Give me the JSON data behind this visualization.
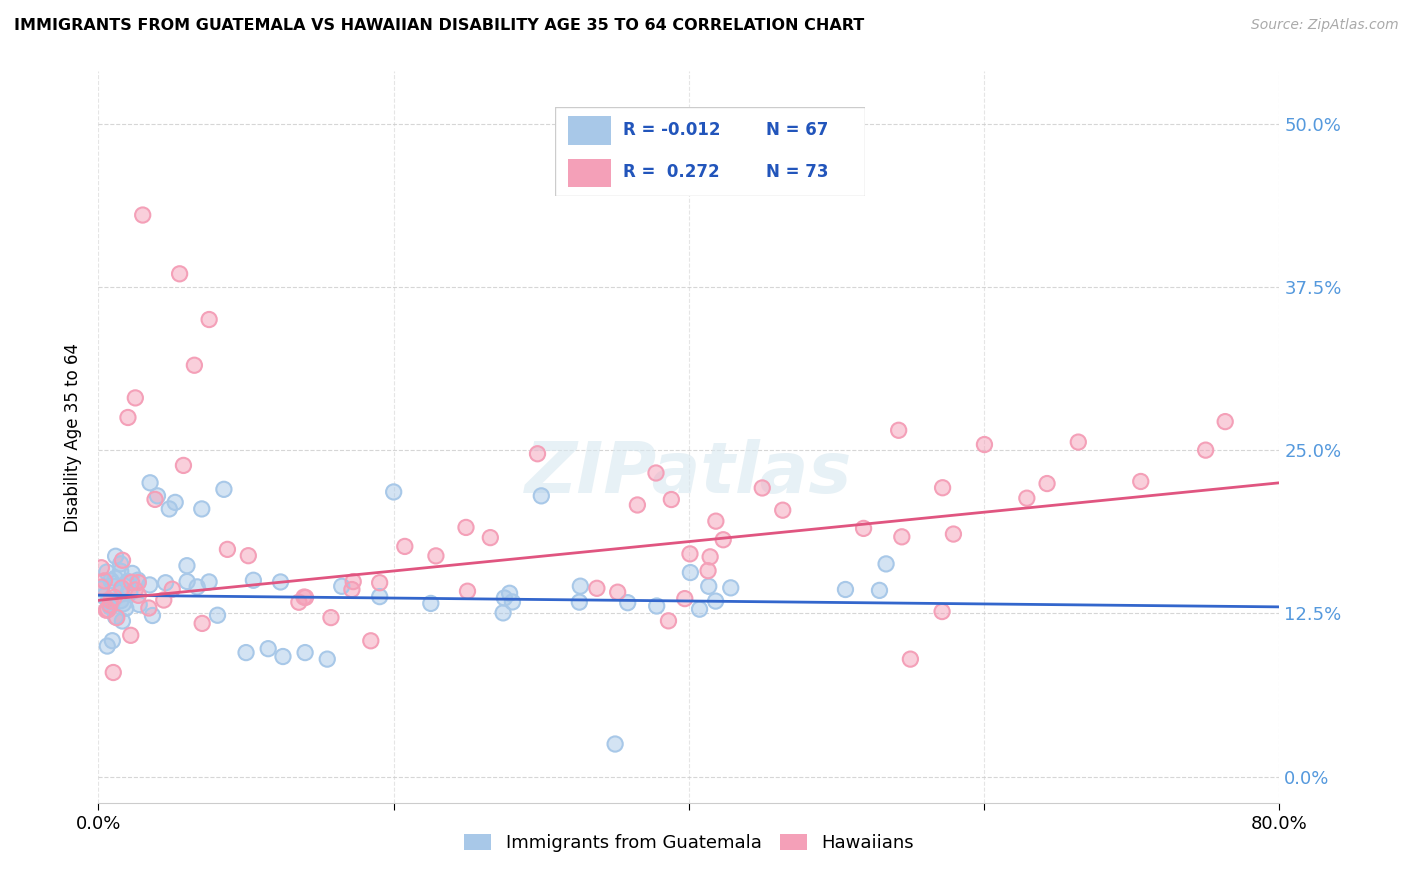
{
  "title": "IMMIGRANTS FROM GUATEMALA VS HAWAIIAN DISABILITY AGE 35 TO 64 CORRELATION CHART",
  "source": "Source: ZipAtlas.com",
  "ylabel": "Disability Age 35 to 64",
  "ytick_vals": [
    0.0,
    12.5,
    25.0,
    37.5,
    50.0
  ],
  "xlim": [
    0.0,
    80.0
  ],
  "ylim": [
    -2.0,
    54.0
  ],
  "blue_color": "#a8c8e8",
  "pink_color": "#f4a0b8",
  "blue_line_color": "#3366cc",
  "pink_line_color": "#e05580",
  "grid_color": "#cccccc",
  "background_color": "#ffffff",
  "legend_label_blue": "Immigrants from Guatemala",
  "legend_label_pink": "Hawaiians",
  "tick_label_color": "#5599dd",
  "blue_trend_x": [
    0,
    80
  ],
  "blue_trend_y": [
    13.9,
    13.0
  ],
  "pink_trend_x": [
    0,
    80
  ],
  "pink_trend_y": [
    13.5,
    22.5
  ]
}
